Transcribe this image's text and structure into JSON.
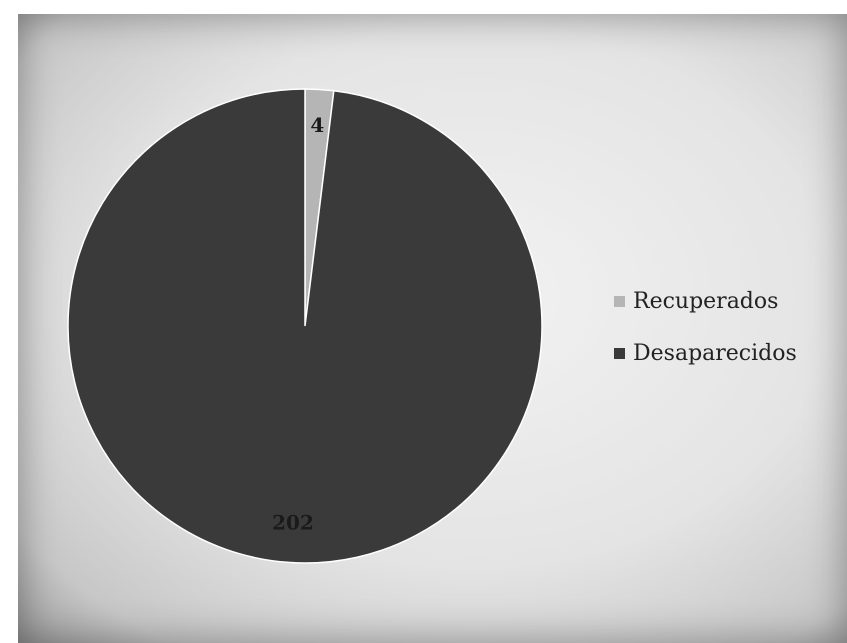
{
  "chart_data": {
    "type": "pie",
    "title": "",
    "categories": [
      "Recuperados",
      "Desaparecidos"
    ],
    "values": [
      4,
      202
    ],
    "data_labels": [
      "4",
      "202"
    ],
    "colors": [
      "#b5b5b5",
      "#3a3a3a"
    ],
    "legend_position": "right",
    "start_angle": "top, clockwise"
  },
  "legend": {
    "items": [
      {
        "label": "Recuperados",
        "color": "#b5b5b5"
      },
      {
        "label": "Desaparecidos",
        "color": "#3a3a3a"
      }
    ]
  }
}
